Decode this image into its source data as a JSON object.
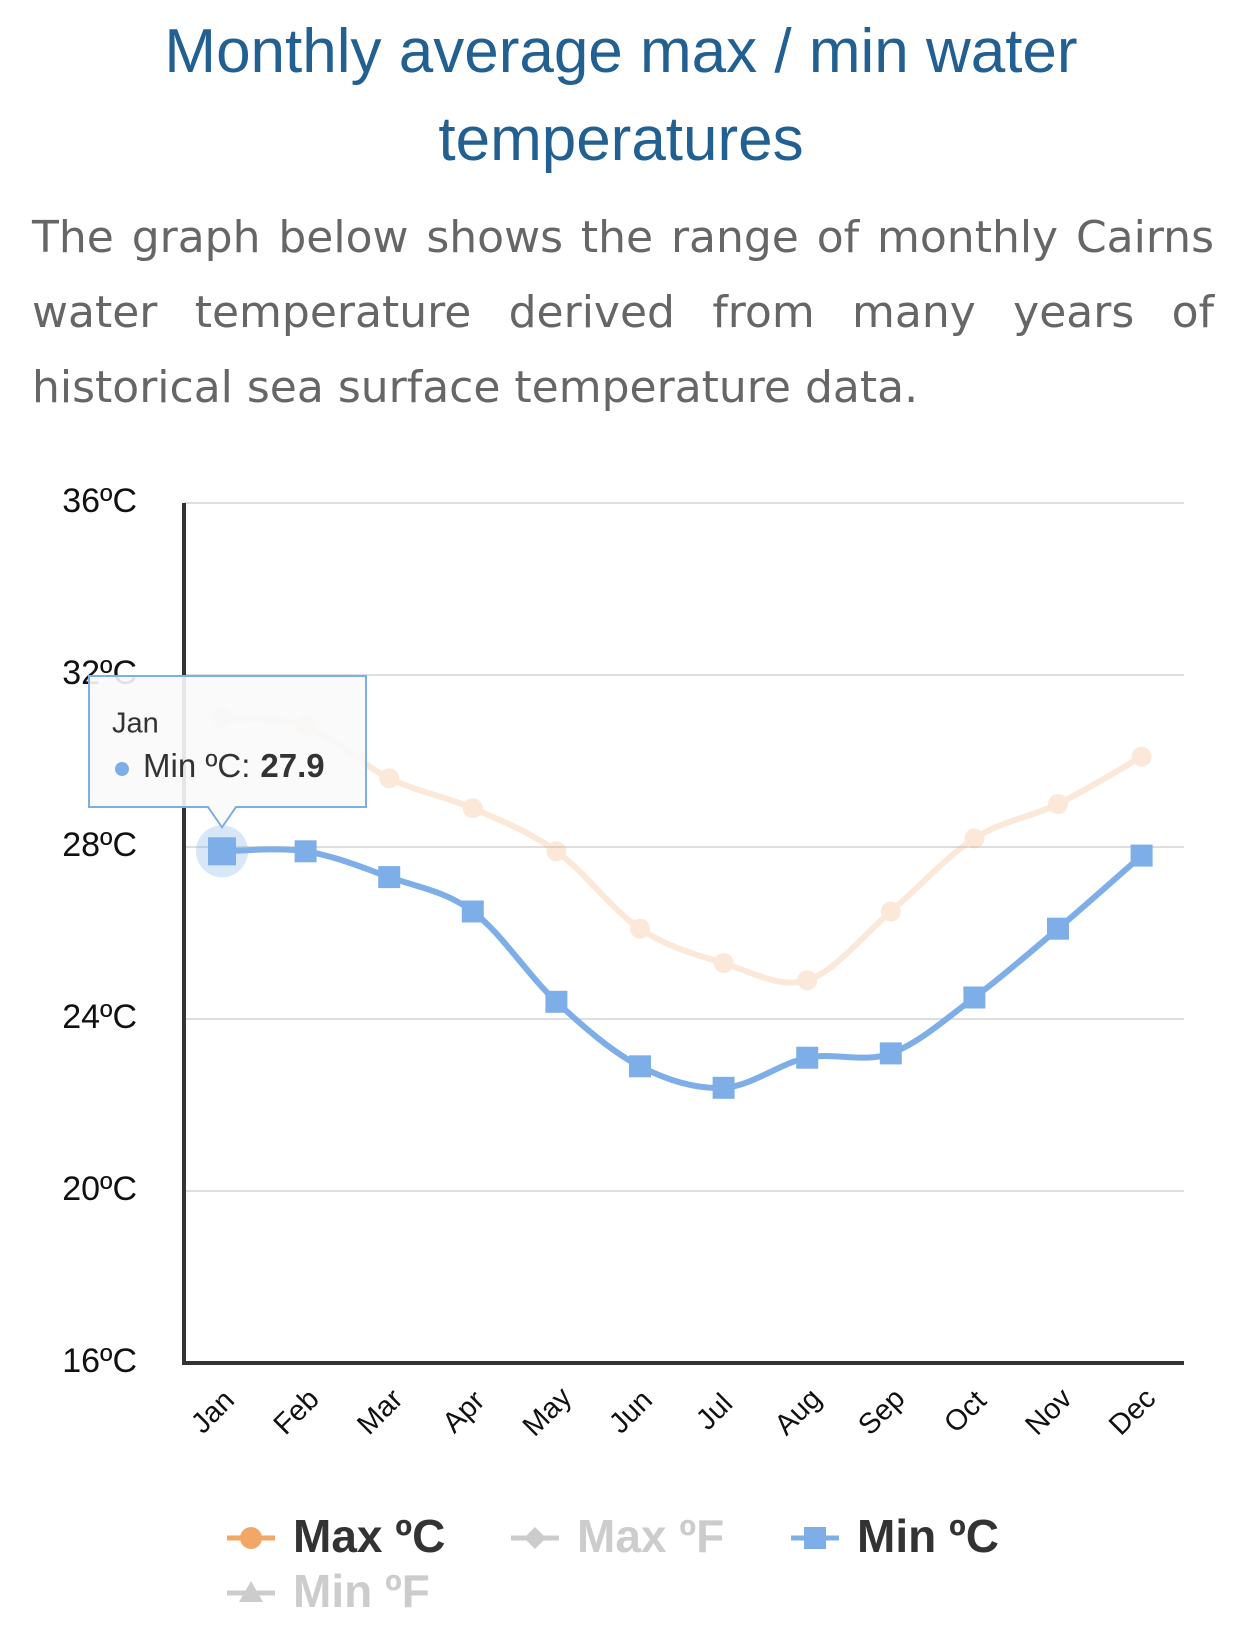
{
  "title": "Monthly average max / min water temperatures",
  "subtitle": "The graph below shows the range of monthly Cairns water temperature derived from many years of historical sea surface temperature data.",
  "chart_data": {
    "type": "line",
    "categories": [
      "Jan",
      "Feb",
      "Mar",
      "Apr",
      "May",
      "Jun",
      "Jul",
      "Aug",
      "Sep",
      "Oct",
      "Nov",
      "Dec"
    ],
    "series": [
      {
        "name": "Max ºC",
        "color": "#f2a766",
        "values": [
          31.0,
          30.8,
          29.6,
          28.9,
          27.9,
          26.1,
          25.3,
          24.9,
          26.5,
          28.2,
          29.0,
          30.1
        ]
      },
      {
        "name": "Max ºF",
        "color": "#cccccc",
        "hidden": true
      },
      {
        "name": "Min ºC",
        "color": "#7eaee8",
        "values": [
          27.9,
          27.9,
          27.3,
          26.5,
          24.4,
          22.9,
          22.4,
          23.1,
          23.2,
          24.5,
          26.1,
          27.8
        ]
      },
      {
        "name": "Min ºF",
        "color": "#cccccc",
        "hidden": true
      }
    ],
    "ylim": [
      16,
      36
    ],
    "yticks": [
      {
        "value": 16,
        "label": "16ºC"
      },
      {
        "value": 20,
        "label": "20ºC"
      },
      {
        "value": 24,
        "label": "24ºC"
      },
      {
        "value": 28,
        "label": "28ºC"
      },
      {
        "value": 32,
        "label": "32ºC"
      },
      {
        "value": 36,
        "label": "36ºC"
      }
    ],
    "grid": true,
    "legend": "bottom",
    "tooltip": {
      "label": "Min ºC:"
    }
  }
}
